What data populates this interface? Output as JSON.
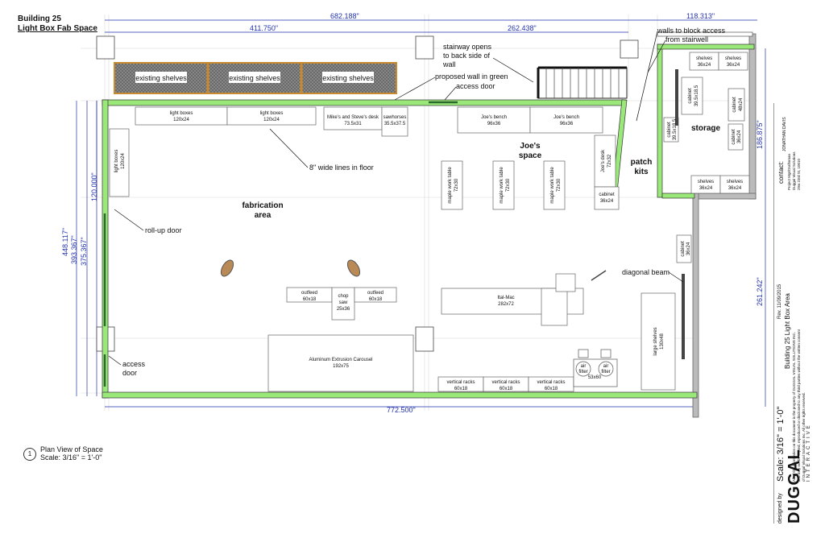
{
  "title": {
    "line1": "Building 25",
    "line2": "Light Box Fab Space"
  },
  "dimensions": {
    "overall_top": "682.188\"",
    "top_left": "411.750\"",
    "top_mid": "262.438\"",
    "top_right": "118.313\"",
    "bottom": "772.500\"",
    "left_outer": "448.117\"",
    "left_mid": "393.367\"",
    "left_inner": "375.367\"",
    "left_short": "120.000\"",
    "right_top": "186.875\"",
    "right_bottom": "261.242\""
  },
  "areas": {
    "fabrication": [
      "fabrication",
      "area"
    ],
    "joes": [
      "Joe's",
      "space"
    ],
    "patch": [
      "patch",
      "kits"
    ],
    "storage": "storage"
  },
  "shelves": [
    "existing shelves",
    "existing shelves",
    "existing shelves"
  ],
  "items": {
    "light_boxes_1": [
      "light boxes",
      "120x24"
    ],
    "light_boxes_2": [
      "light boxes",
      "120x24"
    ],
    "light_boxes_side": [
      "light boxes",
      "120x24"
    ],
    "mike_desk": [
      "Mike's and Steve's desk",
      "73.5x31"
    ],
    "sawhorses": [
      "sawhorses",
      "35.5x37.5"
    ],
    "joes_bench_1": [
      "Joe's bench",
      "96x36"
    ],
    "joes_bench_2": [
      "Joe's bench",
      "96x36"
    ],
    "joes_desk": [
      "Joe's desk",
      "72x32"
    ],
    "cabinet_1": [
      "cabinet",
      "36x24"
    ],
    "maple_1": [
      "maple work table",
      "72x30"
    ],
    "maple_2": [
      "maple work table",
      "72x30"
    ],
    "maple_3": [
      "maple work table",
      "72x30"
    ],
    "outfeed_1": [
      "outfeed",
      "60x18"
    ],
    "outfeed_2": [
      "outfeed",
      "60x18"
    ],
    "chop_saw": [
      "chop",
      "saw",
      "25x36"
    ],
    "ital_mac": [
      "Ital-Mac",
      "282x72"
    ],
    "carousel": [
      "Aluminum Extrusion Carousel",
      "192x75"
    ],
    "vrack_1": [
      "vertical racks",
      "60x18"
    ],
    "vrack_2": [
      "vertical racks",
      "60x18"
    ],
    "vrack_3": [
      "vertical racks",
      "60x18"
    ],
    "air_filter_1": [
      "air",
      "filter"
    ],
    "air_filter_2": [
      "air",
      "filter"
    ],
    "air_filter_size": "53x60",
    "large_shelves": [
      "large shelves",
      "130x48"
    ],
    "cabinet_2": [
      "cabinet",
      "36x24"
    ],
    "cabinet_3": [
      "cabinet",
      "39.5x18.5"
    ],
    "cabinet_4": [
      "cabinet",
      "39.5x18.5"
    ],
    "cabinet_5": [
      "cabinet",
      "48x24"
    ],
    "cabinet_6": [
      "cabinet",
      "36x24"
    ],
    "storage_shelves_1": [
      "shelves",
      "36x24"
    ],
    "storage_shelves_2": [
      "shelves",
      "36x24"
    ],
    "storage_shelves_3": [
      "shelves",
      "36x24"
    ],
    "storage_shelves_4": [
      "shelves",
      "36x24"
    ]
  },
  "annotations": {
    "stairway": [
      "stairway opens",
      "to back side of",
      "wall"
    ],
    "proposed_wall": "proposed wall in green",
    "access_door_top": "access door",
    "walls_block": [
      "walls to block access",
      "from stairwell"
    ],
    "lines_floor": "8\" wide lines in floor",
    "rollup_door": "roll-up door",
    "access_door_left": [
      "access",
      "door"
    ],
    "diagonal_beam": "diagonal beam"
  },
  "caption": {
    "number": "1",
    "line1": "Plan View of Space",
    "line2": "Scale: 3/16\" = 1'-0\""
  },
  "title_block": {
    "scale": "Scale: 3/16\" = 1'-0\"",
    "rev": "Rev. 11/09/2015",
    "project": "Building 25 Light Box Area",
    "disclaimer": [
      "All of the information on this document is the property of DUGGAL VISUAL SOLUTIONS INC.",
      "and may not be copied, reproduced or disclosed to any third parties without the written consent",
      "of Duggal Visual Solutions Inc. All other rights reserved."
    ],
    "contact_label": "contact:",
    "contact_name": "JONATHAN DAVIS",
    "contact_lines": [
      "Project Mgr/Draftsman",
      "Duggal Visual Solutions",
      "29w 23rd St, 10010"
    ],
    "designed_by": "designed by",
    "logo": "DUGGAL",
    "logo_sub": "INTERACTIVE"
  },
  "colors": {
    "wall": "#9be87a",
    "dim": "#2233aa",
    "shelf": "#c98a2e"
  }
}
